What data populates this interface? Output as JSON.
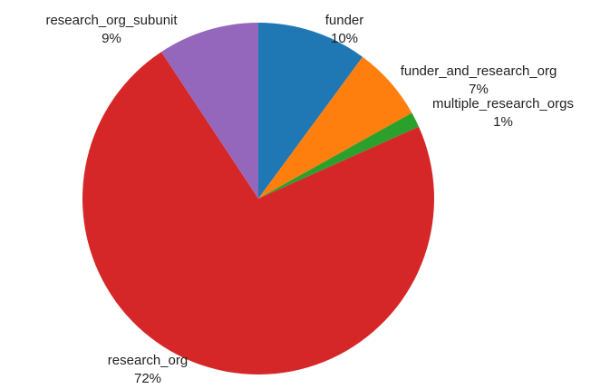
{
  "chart_data": {
    "type": "pie",
    "title": "",
    "legend": "none",
    "start_angle_deg": 0,
    "direction": "clockwise",
    "slices": [
      {
        "label": "funder",
        "pct_label": "10%",
        "value": 10.1,
        "color": "#1f77b4"
      },
      {
        "label": "funder_and_research_org",
        "pct_label": "7%",
        "value": 6.8,
        "color": "#ff7f0e"
      },
      {
        "label": "multiple_research_orgs",
        "pct_label": "1%",
        "value": 1.4,
        "color": "#2ca02c"
      },
      {
        "label": "research_org",
        "pct_label": "72%",
        "value": 72.4,
        "color": "#d62728"
      },
      {
        "label": "research_org_subunit",
        "pct_label": "9%",
        "value": 9.3,
        "color": "#9467bd"
      }
    ]
  }
}
